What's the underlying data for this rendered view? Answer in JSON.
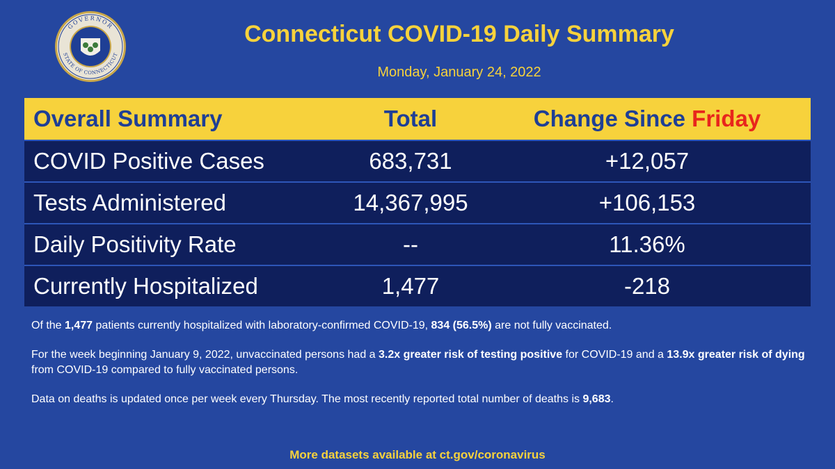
{
  "seal": {
    "top_text": "GOVERNOR",
    "bottom_text": "STATE OF CONNECTICUT"
  },
  "header": {
    "title": "Connecticut COVID-19 Daily Summary",
    "date": "Monday, January 24, 2022"
  },
  "table": {
    "col_summary": "Overall Summary",
    "col_total": "Total",
    "col_change_prefix": "Change Since ",
    "col_change_day": "Friday",
    "rows": [
      {
        "label": "COVID Positive Cases",
        "total": "683,731",
        "change": "+12,057"
      },
      {
        "label": "Tests Administered",
        "total": "14,367,995",
        "change": "+106,153"
      },
      {
        "label": "Daily Positivity Rate",
        "total": "--",
        "change": "11.36%"
      },
      {
        "label": "Currently Hospitalized",
        "total": "1,477",
        "change": "-218"
      }
    ]
  },
  "notes": {
    "p1_a": "Of the ",
    "p1_b": "1,477",
    "p1_c": " patients currently hospitalized with laboratory-confirmed COVID-19, ",
    "p1_d": "834 (56.5%)",
    "p1_e": " are not fully vaccinated.",
    "p2_a": "For the week beginning January 9, 2022, unvaccinated persons had a ",
    "p2_b": "3.2x greater risk of testing positive",
    "p2_c": " for COVID-19 and a ",
    "p2_d": "13.9x greater risk of dying",
    "p2_e": " from COVID-19 compared to fully vaccinated persons.",
    "p3_a": "Data on deaths is updated once per week every Thursday. The most recently reported total number of deaths is ",
    "p3_b": "9,683",
    "p3_c": "."
  },
  "footer": {
    "text": "More datasets available at ct.gov/coronavirus"
  }
}
